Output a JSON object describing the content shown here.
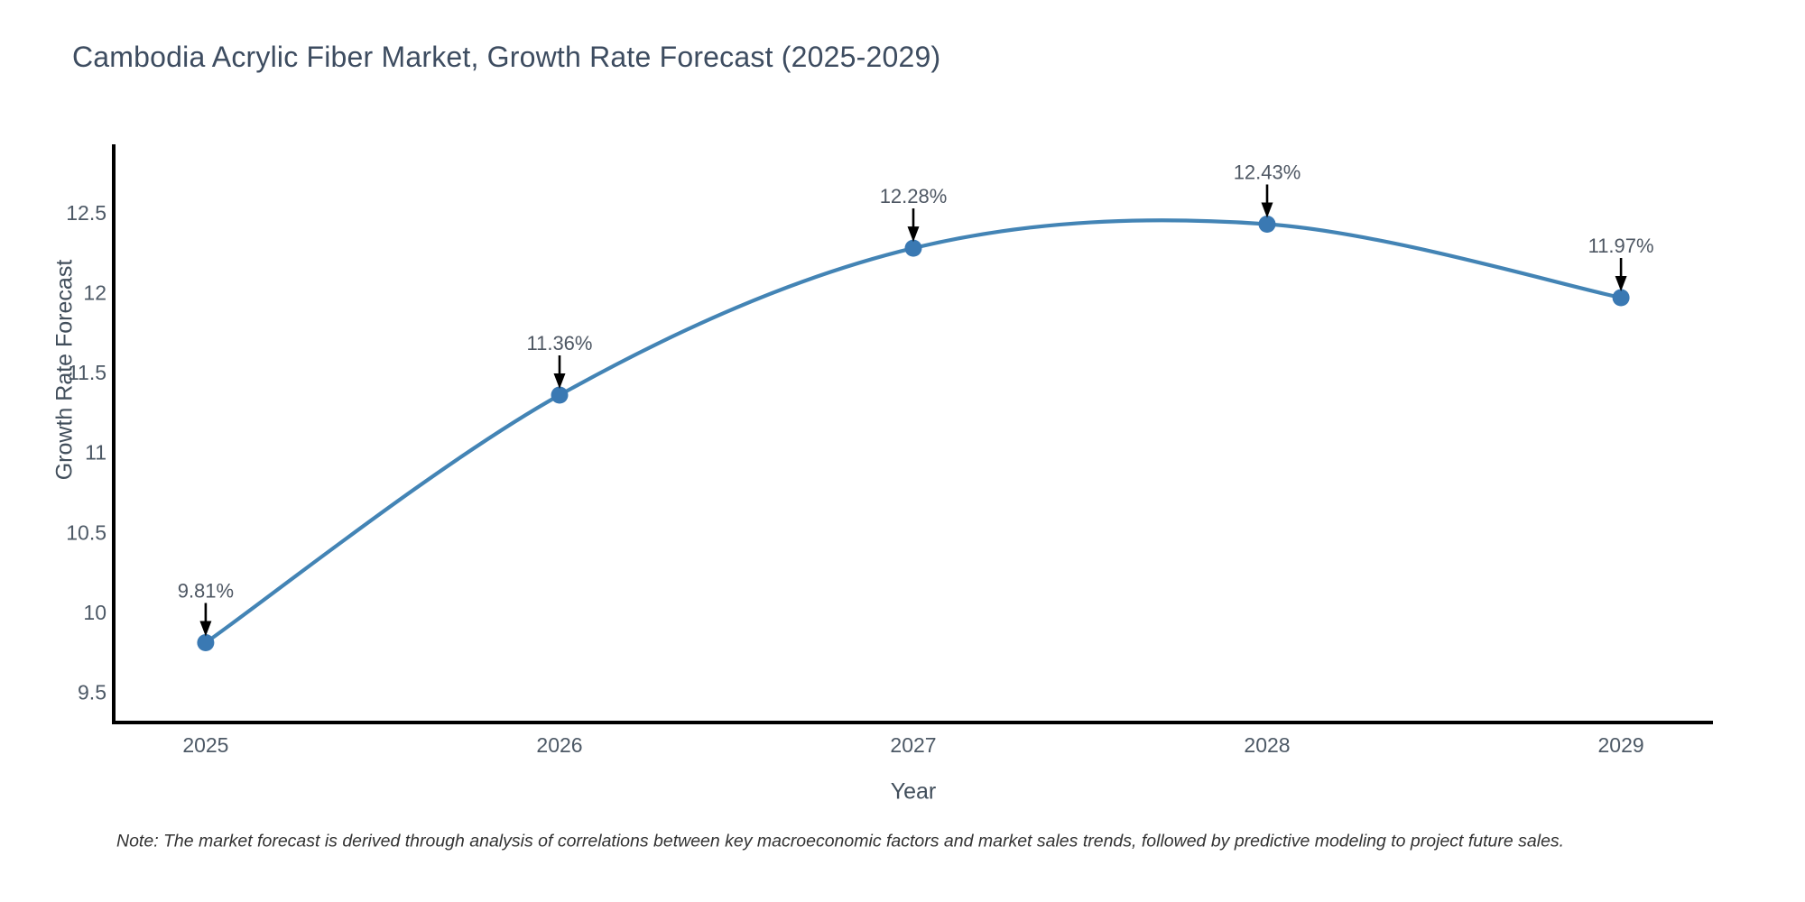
{
  "page": {
    "background": "#ffffff"
  },
  "chart_data": {
    "type": "line",
    "title": "Cambodia Acrylic Fiber Market, Growth Rate Forecast (2025-2029)",
    "xlabel": "Year",
    "ylabel": "Growth Rate Forecast",
    "categories": [
      2025,
      2026,
      2027,
      2028,
      2029
    ],
    "series": [
      {
        "name": "Growth Rate Forecast",
        "values": [
          9.81,
          11.36,
          12.28,
          12.43,
          11.97
        ]
      }
    ],
    "point_labels": [
      "9.81%",
      "11.36%",
      "12.28%",
      "12.43%",
      "11.97%"
    ],
    "xticks": [
      2025,
      2026,
      2027,
      2028,
      2029
    ],
    "yticks": [
      9.5,
      10,
      10.5,
      11,
      11.5,
      12,
      12.5
    ],
    "xlim": [
      2024.74,
      2029.26
    ],
    "ylim": [
      9.31,
      12.93
    ],
    "grid": false,
    "legend": "none",
    "line_shape": "spline",
    "colors": {
      "line": "#4384b5",
      "marker": "#3a79b3",
      "spine": "#000000",
      "title": "#3d4c60",
      "tick_label": "#4d5966",
      "axis_label": "#414e5b",
      "annotation": "#4e5763",
      "arrow": "#000000",
      "note": "#333333",
      "background": "#ffffff"
    }
  },
  "note": {
    "text": "Note: The market forecast is derived through analysis of correlations between key macroeconomic factors and market sales trends, followed by predictive modeling to project future sales."
  }
}
